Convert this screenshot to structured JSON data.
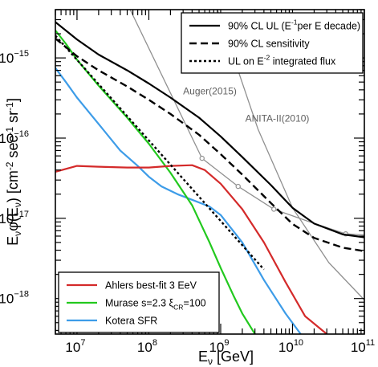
{
  "chart_data": {
    "type": "line",
    "xscale": "log",
    "yscale": "log",
    "xlim": [
      5000000,
      100000000000
    ],
    "ylim": [
      3.6e-19,
      4e-15
    ],
    "xlabel": {
      "main": "E",
      "sub": "ν",
      "unit": "[GeV]"
    },
    "ylabel": {
      "parts": [
        {
          "t": "E",
          "s": ""
        },
        {
          "t": "ν",
          "s": "sub"
        },
        {
          "t": "φ(E",
          "s": ""
        },
        {
          "t": "ν",
          "s": "sub"
        },
        {
          "t": ") [cm",
          "s": ""
        },
        {
          "t": "-2",
          "s": "sup"
        },
        {
          "t": " sec",
          "s": ""
        },
        {
          "t": "-1",
          "s": "sup"
        },
        {
          "t": " sr",
          "s": ""
        },
        {
          "t": "-1",
          "s": "sup"
        },
        {
          "t": "]",
          "s": ""
        }
      ]
    },
    "x_ticks": [
      {
        "value": 10000000,
        "base": "10",
        "exp": "7"
      },
      {
        "value": 100000000,
        "base": "10",
        "exp": "8"
      },
      {
        "value": 1000000000,
        "base": "10",
        "exp": "9"
      },
      {
        "value": 10000000000,
        "base": "10",
        "exp": "10"
      },
      {
        "value": 100000000000,
        "base": "10",
        "exp": "11"
      }
    ],
    "y_ticks": [
      {
        "value": 1e-18,
        "base": "10",
        "exp": "−18"
      },
      {
        "value": 1e-17,
        "base": "10",
        "exp": "−17"
      },
      {
        "value": 1e-16,
        "base": "10",
        "exp": "−16"
      },
      {
        "value": 1e-15,
        "base": "10",
        "exp": "−15"
      }
    ],
    "series": [
      {
        "key": "ul",
        "color": "#000000",
        "width": 2.2,
        "dash": "",
        "x": [
          5000000,
          10000000,
          20000000,
          50000000,
          100000000,
          200000000,
          500000000,
          1000000000,
          2000000000,
          5000000000,
          10000000000,
          20000000000,
          50000000000,
          100000000000
        ],
        "y": [
          2.8e-15,
          1.7e-15,
          1.1e-15,
          7e-16,
          4.8e-16,
          3.2e-16,
          1.8e-16,
          1.05e-16,
          5.8e-17,
          2.6e-17,
          1.35e-17,
          8.6e-18,
          6.3e-18,
          5.8e-18
        ]
      },
      {
        "key": "sens",
        "color": "#000000",
        "width": 2.4,
        "dash": "9,5",
        "x": [
          5000000,
          10000000,
          20000000,
          50000000,
          100000000,
          200000000,
          500000000,
          1000000000,
          2000000000,
          5000000000,
          10000000000,
          20000000000,
          50000000000,
          100000000000
        ],
        "y": [
          1.75e-15,
          1.05e-15,
          7e-16,
          4.4e-16,
          3e-16,
          2e-16,
          1.1e-16,
          6.3e-17,
          3.5e-17,
          1.55e-17,
          8.5e-18,
          5.7e-18,
          4.3e-18,
          3.9e-18
        ]
      },
      {
        "key": "e2",
        "color": "#000000",
        "width": 2.4,
        "dash": "3,3",
        "x": [
          5000000,
          4000000000
        ],
        "y": [
          1.9e-15,
          2.3e-18
        ]
      },
      {
        "key": "ahlers",
        "name": "Ahlers best-fit 3 EeV",
        "color": "#d42a2a",
        "width": 2.2,
        "dash": "",
        "x": [
          5000000,
          10000000,
          20000000,
          50000000,
          100000000,
          200000000,
          400000000,
          600000000,
          1000000000,
          2000000000,
          4000000000,
          8000000000,
          15000000000,
          30000000000
        ],
        "y": [
          3.8e-17,
          4.5e-17,
          4.4e-17,
          4.3e-17,
          4.3e-17,
          4.5e-17,
          4.6e-17,
          4e-17,
          2.7e-17,
          1.3e-17,
          5e-18,
          1.6e-18,
          6e-19,
          3.6e-19
        ]
      },
      {
        "key": "murase",
        "name": "Murase s=2.3 ξ_CR=100",
        "color": "#22c91e",
        "width": 2.2,
        "dash": "",
        "x": [
          5000000,
          7000000,
          10000000,
          20000000,
          50000000,
          100000000,
          200000000,
          400000000,
          700000000,
          1000000000,
          1500000000,
          2000000000,
          3000000000
        ],
        "y": [
          2.2e-15,
          1.5e-15,
          9.5e-16,
          4.5e-16,
          1.8e-16,
          8.5e-17,
          3.7e-17,
          1.45e-17,
          5e-18,
          2.4e-18,
          1.1e-18,
          6.5e-19,
          3.6e-19
        ]
      },
      {
        "key": "kotera",
        "name": "Kotera SFR",
        "color": "#3d9ce8",
        "width": 2.2,
        "dash": "",
        "x": [
          5000000,
          7000000,
          10000000,
          20000000,
          40000000,
          70000000,
          100000000,
          150000000,
          250000000,
          400000000,
          700000000,
          1000000000,
          2000000000,
          4000000000,
          8000000000,
          13000000000
        ],
        "y": [
          7.5e-16,
          5e-16,
          3.2e-16,
          1.5e-16,
          7e-17,
          4.5e-17,
          3.3e-17,
          2.5e-17,
          2e-17,
          1.7e-17,
          1.4e-17,
          1.1e-17,
          5e-18,
          1.7e-18,
          6.5e-19,
          3.6e-19
        ]
      },
      {
        "key": "auger",
        "name": "Auger(2015)",
        "color": "#909090",
        "width": 1.3,
        "dash": "",
        "markers": true,
        "x": [
          55000000,
          550000000,
          1750000000,
          5500000000,
          17500000000,
          55000000000,
          100000000000
        ],
        "y": [
          4e-15,
          5.6e-17,
          2.5e-17,
          1.3e-17,
          9e-18,
          6.4e-18,
          6.2e-18
        ],
        "marker_x": [
          550000000,
          1750000000,
          5500000000,
          55000000000
        ],
        "marker_y": [
          5.6e-17,
          2.5e-17,
          1.3e-17,
          6.4e-18
        ]
      },
      {
        "key": "anita",
        "name": "ANITA-II(2010)",
        "color": "#909090",
        "width": 1.3,
        "dash": "",
        "markers": false,
        "x": [
          900000000,
          3300000000,
          10000000000,
          32000000000,
          100000000000
        ],
        "y": [
          4e-15,
          1.3e-16,
          1.35e-17,
          2.8e-18,
          9.6e-19
        ]
      }
    ],
    "annotations": [
      {
        "key": "auger",
        "text": "Auger(2015)",
        "x": 300000000,
        "y": 3.5e-16
      },
      {
        "key": "anita",
        "text": "ANITA-II(2010)",
        "x": 2200000000,
        "y": 1.6e-16
      }
    ],
    "legend_top": {
      "placement": "top-right",
      "entries": [
        {
          "key": "ul",
          "parts": [
            {
              "t": "90% CL UL (E",
              "s": ""
            },
            {
              "t": "-1",
              "s": "sup"
            },
            {
              "t": "per E decade)",
              "s": ""
            }
          ]
        },
        {
          "key": "sens",
          "parts": [
            {
              "t": "90% CL sensitivity",
              "s": ""
            }
          ]
        },
        {
          "key": "e2",
          "parts": [
            {
              "t": "UL on E",
              "s": ""
            },
            {
              "t": "-2",
              "s": "sup"
            },
            {
              "t": " integrated flux",
              "s": ""
            }
          ]
        }
      ]
    },
    "legend_bottom": {
      "placement": "bottom-left",
      "entries": [
        {
          "key": "ahlers",
          "parts": [
            {
              "t": "Ahlers best-fit 3 EeV",
              "s": ""
            }
          ]
        },
        {
          "key": "murase",
          "parts": [
            {
              "t": "Murase s=2.3 ξ",
              "s": ""
            },
            {
              "t": "CR",
              "s": "sub"
            },
            {
              "t": "=100",
              "s": ""
            }
          ]
        },
        {
          "key": "kotera",
          "parts": [
            {
              "t": "Kotera SFR",
              "s": ""
            }
          ]
        }
      ]
    },
    "grid": false
  }
}
